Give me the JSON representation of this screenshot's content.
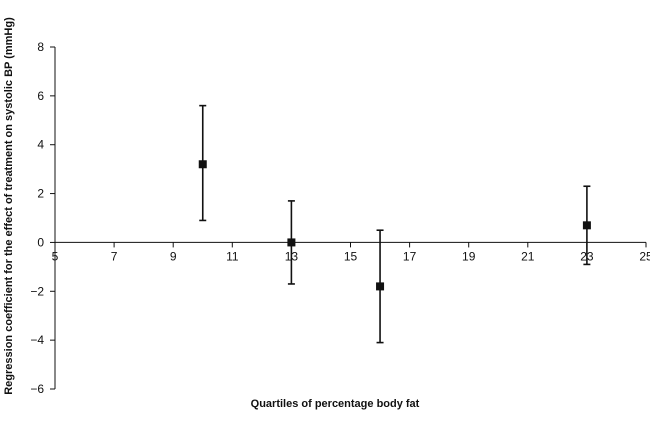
{
  "chart_data": {
    "type": "scatter",
    "title": "",
    "xlabel": "Quartiles of percentage body fat",
    "ylabel": "Regression coefficient for the effect of treatment on systolic BP (mmHg)",
    "xlim": [
      5,
      25
    ],
    "ylim": [
      -6,
      8
    ],
    "x_ticks": [
      "5",
      "7",
      "9",
      "11",
      "13",
      "15",
      "17",
      "19",
      "21",
      "23",
      "25"
    ],
    "y_ticks": [
      "8",
      "6",
      "4",
      "2",
      "0",
      "−2",
      "−4",
      "−6"
    ],
    "grid": false,
    "legend": "none",
    "points": [
      {
        "x": 10,
        "y": 3.2,
        "lower": 0.9,
        "upper": 5.6
      },
      {
        "x": 13,
        "y": 0.0,
        "lower": -1.7,
        "upper": 1.7
      },
      {
        "x": 16,
        "y": -1.8,
        "lower": -4.1,
        "upper": 0.5
      },
      {
        "x": 23,
        "y": 0.7,
        "lower": -0.9,
        "upper": 2.3
      }
    ],
    "colors": {
      "marker": "#111111",
      "axis": "#111111"
    }
  }
}
